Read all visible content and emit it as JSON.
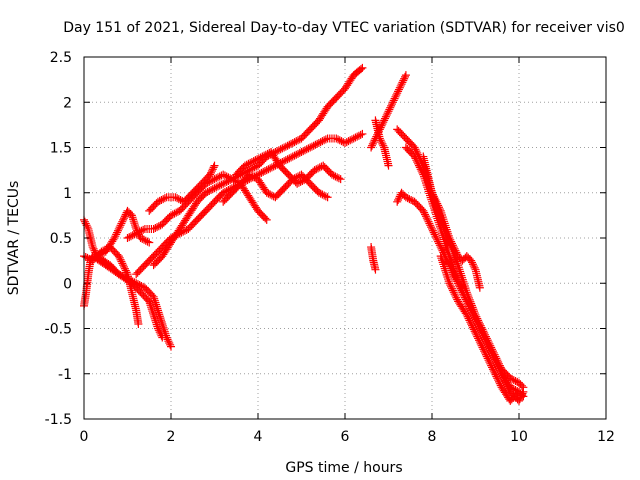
{
  "chart_data": {
    "type": "scatter",
    "title": "Day 151 of 2021, Sidereal Day-to-day VTEC variation (SDTVAR) for receiver vis0",
    "xlabel": "GPS time / hours",
    "ylabel": "SDTVAR / TECUs",
    "xlim": [
      0,
      12
    ],
    "ylim": [
      -1.5,
      2.5
    ],
    "xticks": [
      0,
      2,
      4,
      6,
      8,
      10,
      12
    ],
    "yticks": [
      -1.5,
      -1,
      -0.5,
      0,
      0.5,
      1,
      1.5,
      2,
      2.5
    ],
    "xtick_labels": [
      "0",
      "2",
      "4",
      "6",
      "8",
      "10",
      "12"
    ],
    "ytick_labels": [
      "-1.5",
      "-1",
      "-0.5",
      "0",
      "0.5",
      "1",
      "1.5",
      "2",
      "2.5"
    ],
    "grid": true,
    "marker": "+",
    "marker_color": "#ff0000",
    "series": [
      {
        "x": [
          0.0,
          0.1,
          0.2,
          0.3,
          0.5,
          0.7,
          0.9,
          1.0,
          1.1,
          1.2,
          1.3,
          1.5
        ],
        "y": [
          0.7,
          0.6,
          0.4,
          0.3,
          0.35,
          0.5,
          0.7,
          0.8,
          0.75,
          0.6,
          0.5,
          0.45
        ]
      },
      {
        "x": [
          0.0,
          0.05,
          0.1,
          0.15,
          0.2,
          0.3,
          0.45,
          0.6,
          0.8,
          1.0,
          1.2,
          1.4,
          1.6,
          1.7,
          1.8,
          1.9,
          2.0
        ],
        "y": [
          -0.25,
          -0.1,
          0.1,
          0.25,
          0.3,
          0.3,
          0.25,
          0.2,
          0.1,
          0.05,
          0.0,
          -0.05,
          -0.15,
          -0.3,
          -0.45,
          -0.6,
          -0.7
        ]
      },
      {
        "x": [
          0.0,
          0.2,
          0.4,
          0.6,
          0.8,
          1.0,
          1.1,
          1.2,
          1.25
        ],
        "y": [
          0.3,
          0.25,
          0.35,
          0.4,
          0.3,
          0.1,
          -0.1,
          -0.3,
          -0.45
        ]
      },
      {
        "x": [
          0.2,
          0.5,
          0.8,
          1.1,
          1.3,
          1.5,
          1.6,
          1.7,
          1.8
        ],
        "y": [
          0.3,
          0.2,
          0.1,
          0.0,
          -0.1,
          -0.2,
          -0.35,
          -0.5,
          -0.6
        ]
      },
      {
        "x": [
          1.0,
          1.2,
          1.4,
          1.6,
          1.8,
          2.0,
          2.2,
          2.4,
          2.6,
          2.8,
          3.0,
          3.2,
          3.4,
          3.6,
          3.8,
          4.0,
          4.2
        ],
        "y": [
          0.5,
          0.55,
          0.6,
          0.6,
          0.65,
          0.75,
          0.8,
          0.9,
          1.0,
          1.1,
          1.15,
          1.2,
          1.15,
          1.1,
          0.95,
          0.8,
          0.7
        ]
      },
      {
        "x": [
          1.5,
          1.7,
          1.9,
          2.1,
          2.3,
          2.5,
          2.7,
          2.9,
          3.0
        ],
        "y": [
          0.8,
          0.9,
          0.95,
          0.95,
          0.9,
          1.0,
          1.1,
          1.2,
          1.3
        ]
      },
      {
        "x": [
          1.2,
          1.4,
          1.6,
          1.8,
          2.0,
          2.2,
          2.4,
          2.6,
          2.8,
          3.0,
          3.2,
          3.4,
          3.6,
          3.8,
          4.0,
          4.2,
          4.4,
          4.6,
          4.8,
          5.0,
          5.2,
          5.4,
          5.6,
          5.8,
          6.0,
          6.2,
          6.4
        ],
        "y": [
          0.1,
          0.2,
          0.3,
          0.4,
          0.5,
          0.55,
          0.6,
          0.7,
          0.8,
          0.9,
          1.0,
          1.05,
          1.1,
          1.15,
          1.2,
          1.25,
          1.3,
          1.35,
          1.4,
          1.45,
          1.5,
          1.55,
          1.6,
          1.6,
          1.55,
          1.6,
          1.65
        ]
      },
      {
        "x": [
          1.6,
          1.8,
          2.0,
          2.2,
          2.4,
          2.6,
          2.8,
          3.0,
          3.2,
          3.4,
          3.6,
          3.8,
          4.0,
          4.2,
          4.4,
          4.6,
          4.8,
          5.0,
          5.2,
          5.4,
          5.6,
          5.8,
          6.0,
          6.2,
          6.4
        ],
        "y": [
          0.2,
          0.3,
          0.45,
          0.6,
          0.75,
          0.9,
          1.0,
          1.05,
          1.1,
          1.15,
          1.2,
          1.25,
          1.3,
          1.4,
          1.45,
          1.5,
          1.55,
          1.6,
          1.7,
          1.8,
          1.95,
          2.05,
          2.15,
          2.3,
          2.38
        ]
      },
      {
        "x": [
          3.2,
          3.4,
          3.6,
          3.8,
          4.0,
          4.2,
          4.4,
          4.6,
          4.8,
          5.0,
          5.2,
          5.4,
          5.6
        ],
        "y": [
          0.9,
          1.0,
          1.1,
          1.2,
          1.15,
          1.0,
          0.95,
          1.05,
          1.15,
          1.2,
          1.1,
          1.0,
          0.95
        ]
      },
      {
        "x": [
          3.5,
          3.7,
          3.9,
          4.1,
          4.3,
          4.5,
          4.7,
          4.9,
          5.1,
          5.3,
          5.5,
          5.7,
          5.9
        ],
        "y": [
          1.2,
          1.3,
          1.35,
          1.4,
          1.45,
          1.3,
          1.2,
          1.1,
          1.15,
          1.25,
          1.3,
          1.2,
          1.15
        ]
      },
      {
        "x": [
          6.6,
          6.65,
          6.7
        ],
        "y": [
          0.4,
          0.25,
          0.15
        ]
      },
      {
        "x": [
          6.6,
          6.7,
          6.8,
          6.9,
          7.0,
          7.1,
          7.2,
          7.3,
          7.4
        ],
        "y": [
          1.5,
          1.6,
          1.7,
          1.8,
          1.9,
          2.0,
          2.1,
          2.2,
          2.3
        ]
      },
      {
        "x": [
          6.7,
          6.8,
          6.9,
          7.0
        ],
        "y": [
          1.8,
          1.6,
          1.5,
          1.3
        ]
      },
      {
        "x": [
          7.2,
          7.4,
          7.6,
          7.8,
          8.0,
          8.2,
          8.4,
          8.6,
          8.8,
          9.0,
          9.2,
          9.4,
          9.6,
          9.8,
          10.0,
          10.1
        ],
        "y": [
          1.7,
          1.6,
          1.5,
          1.3,
          1.0,
          0.7,
          0.45,
          0.2,
          -0.1,
          -0.35,
          -0.55,
          -0.75,
          -0.95,
          -1.05,
          -1.1,
          -1.15
        ]
      },
      {
        "x": [
          7.4,
          7.6,
          7.8,
          8.0,
          8.2,
          8.4,
          8.6,
          8.8,
          9.0,
          9.2,
          9.4,
          9.6,
          9.8,
          10.0,
          10.1
        ],
        "y": [
          1.5,
          1.4,
          1.2,
          0.9,
          0.6,
          0.3,
          0.0,
          -0.2,
          -0.4,
          -0.6,
          -0.8,
          -1.0,
          -1.2,
          -1.3,
          -1.2
        ]
      },
      {
        "x": [
          7.8,
          7.9,
          8.0,
          8.2,
          8.4,
          8.6,
          8.7,
          8.8,
          8.9,
          9.0,
          9.1
        ],
        "y": [
          1.4,
          1.2,
          1.0,
          0.8,
          0.5,
          0.3,
          0.25,
          0.3,
          0.25,
          0.15,
          -0.05
        ]
      },
      {
        "x": [
          7.2,
          7.3,
          7.4,
          7.6,
          7.8,
          8.0,
          8.2,
          8.4,
          8.6,
          8.8,
          9.0,
          9.2,
          9.4,
          9.6,
          9.8,
          10.0,
          10.1
        ],
        "y": [
          0.9,
          1.0,
          0.95,
          0.9,
          0.8,
          0.6,
          0.4,
          0.2,
          0.0,
          -0.2,
          -0.4,
          -0.6,
          -0.8,
          -1.0,
          -1.15,
          -1.2,
          -1.25
        ]
      },
      {
        "x": [
          8.2,
          8.4,
          8.6,
          8.8,
          9.0,
          9.2,
          9.4,
          9.6,
          9.8,
          10.0
        ],
        "y": [
          0.3,
          0.0,
          -0.2,
          -0.35,
          -0.55,
          -0.75,
          -0.95,
          -1.15,
          -1.3,
          -1.2
        ]
      }
    ]
  }
}
